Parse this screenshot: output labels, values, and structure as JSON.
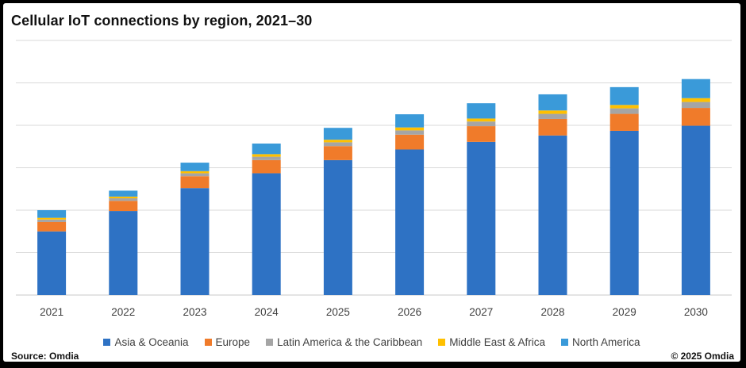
{
  "title": "Cellular IoT connections by region, 2021–30",
  "source": "Source: Omdia",
  "copyright": "© 2025 Omdia",
  "chart_data": {
    "type": "bar",
    "stacked": true,
    "title": "Cellular IoT connections by region, 2021–30",
    "xlabel": "",
    "ylabel": "",
    "ylim": [
      0,
      6
    ],
    "y_gridlines": [
      0,
      1,
      2,
      3,
      4,
      5,
      6
    ],
    "y_tick_labels_shown": false,
    "categories": [
      "2021",
      "2022",
      "2023",
      "2024",
      "2025",
      "2026",
      "2027",
      "2028",
      "2029",
      "2030"
    ],
    "series": [
      {
        "name": "Asia & Oceania",
        "color": "#2E72C4",
        "values": [
          1.5,
          1.98,
          2.52,
          2.87,
          3.18,
          3.43,
          3.61,
          3.76,
          3.87,
          3.99
        ]
      },
      {
        "name": "Europe",
        "color": "#F07B2A",
        "values": [
          0.22,
          0.24,
          0.28,
          0.31,
          0.33,
          0.35,
          0.37,
          0.39,
          0.4,
          0.42
        ]
      },
      {
        "name": "Latin America & the Caribbean",
        "color": "#A5A5A5",
        "values": [
          0.06,
          0.06,
          0.07,
          0.08,
          0.09,
          0.1,
          0.11,
          0.12,
          0.13,
          0.14
        ]
      },
      {
        "name": "Middle East & Africa",
        "color": "#FFC000",
        "values": [
          0.04,
          0.04,
          0.05,
          0.06,
          0.06,
          0.07,
          0.07,
          0.08,
          0.08,
          0.09
        ]
      },
      {
        "name": "North America",
        "color": "#3A9AD9",
        "values": [
          0.18,
          0.14,
          0.2,
          0.25,
          0.28,
          0.31,
          0.36,
          0.38,
          0.42,
          0.45
        ]
      }
    ],
    "legend_position": "bottom"
  }
}
